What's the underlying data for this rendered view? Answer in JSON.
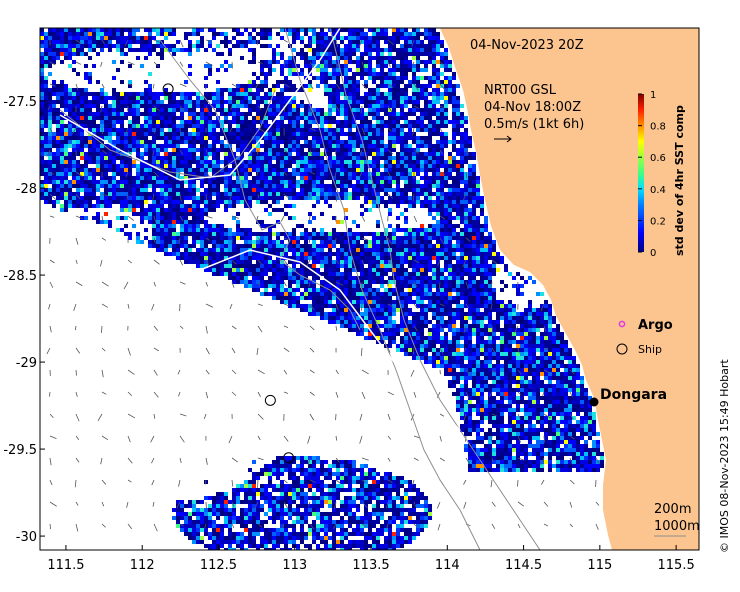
{
  "date_label": "04-Nov-2023 20Z",
  "current_info": {
    "line1": "NRT00 GSL",
    "line2": "04-Nov 18:00Z",
    "line3": "0.5m/s (1kt 6h)"
  },
  "colorbar": {
    "label": "std dev of 4hr SST comp",
    "ticks": [
      "0",
      "0.2",
      "0.4",
      "0.6",
      "0.8",
      "1"
    ],
    "range": [
      0,
      1
    ]
  },
  "legend": {
    "argo_label": "Argo",
    "ship_label": "Ship",
    "argo_color": "#e040e0"
  },
  "places": [
    {
      "name": "Dongara",
      "lon": 114.93,
      "lat": -29.26
    }
  ],
  "ships": [
    {
      "lon": 112.17,
      "lat": -27.43
    },
    {
      "lon": 112.84,
      "lat": -29.22
    },
    {
      "lon": 112.96,
      "lat": -29.55
    }
  ],
  "depth_labels": [
    "200m",
    "1000m"
  ],
  "x_axis": {
    "range": [
      111.33,
      115.65
    ],
    "ticks": [
      "111.5",
      "112",
      "112.5",
      "113",
      "113.5",
      "114",
      "114.5",
      "115",
      "115.5"
    ]
  },
  "y_axis": {
    "range": [
      -30.08,
      -27.08
    ],
    "ticks": [
      "-27.5",
      "-28",
      "-28.5",
      "-29",
      "-29.5",
      "-30"
    ]
  },
  "copyright": "© IMOS 08-Nov-2023 15:49 Hobart",
  "colors": {
    "land": "#fcc590",
    "no_data": "#ffffff",
    "coast_line": "#8f8f8f"
  }
}
